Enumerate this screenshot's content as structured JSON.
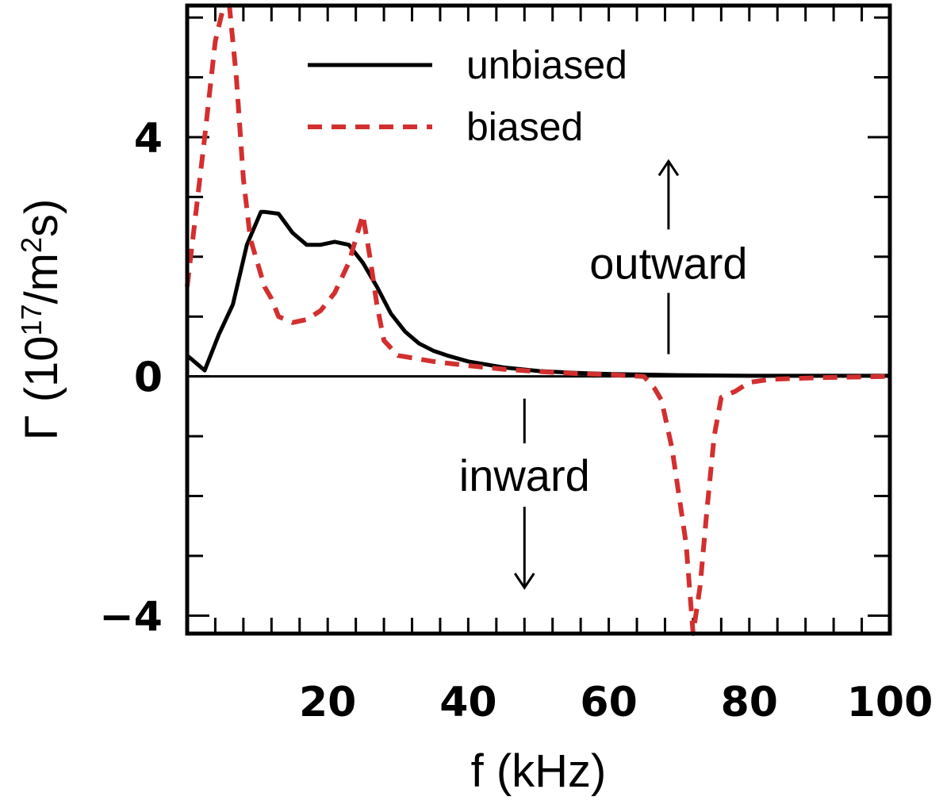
{
  "chart_data": {
    "type": "line",
    "xlabel": "f (kHz)",
    "ylabel_parts": [
      "Γ (10",
      "17",
      "/m",
      "2",
      "s)"
    ],
    "xlim": [
      0,
      100
    ],
    "ylim": [
      -4.3,
      6.2
    ],
    "x_ticks": [
      20,
      40,
      60,
      80,
      100
    ],
    "x_tick_labels": [
      "20",
      "40",
      "60",
      "80",
      "100"
    ],
    "y_ticks": [
      -4,
      0,
      4
    ],
    "y_tick_labels": [
      "−4",
      "0",
      "4"
    ],
    "x_minor_step": 4,
    "y_minor_step": 1,
    "zero_line": true,
    "legend_placement": "top-center",
    "series": [
      {
        "name": "unbiased",
        "style": "solid",
        "color": "#000000",
        "x": [
          0,
          2.5,
          4.5,
          6.5,
          8.5,
          10.5,
          11,
          13,
          15,
          17,
          19,
          21,
          23,
          25,
          27,
          29,
          31,
          33,
          35,
          37,
          40,
          45,
          50,
          55,
          60,
          65,
          70,
          75,
          80,
          90,
          100
        ],
        "y": [
          0.35,
          0.1,
          0.7,
          1.2,
          2.2,
          2.75,
          2.75,
          2.72,
          2.4,
          2.2,
          2.2,
          2.25,
          2.2,
          1.9,
          1.5,
          1.05,
          0.75,
          0.55,
          0.43,
          0.35,
          0.25,
          0.15,
          0.09,
          0.06,
          0.04,
          0.03,
          0.02,
          0.015,
          0.01,
          0.01,
          0.01
        ]
      },
      {
        "name": "biased",
        "style": "dashed",
        "color": "#d32f2f",
        "x": [
          0,
          1,
          2.5,
          4,
          5,
          6,
          7,
          8,
          9,
          10,
          11,
          12,
          13,
          15,
          17,
          19,
          21,
          23,
          24,
          25,
          26,
          27,
          28,
          30,
          35,
          40,
          45,
          50,
          55,
          60,
          65,
          66.5,
          67.5,
          69,
          70,
          71,
          72,
          73,
          74,
          75,
          76,
          78,
          80,
          83,
          90,
          100
        ],
        "y": [
          1.5,
          2.5,
          4.0,
          5.6,
          6.1,
          6.2,
          5.0,
          3.3,
          2.3,
          1.9,
          1.5,
          1.3,
          1.0,
          0.9,
          0.95,
          1.1,
          1.4,
          1.9,
          2.3,
          2.7,
          2.0,
          1.2,
          0.6,
          0.35,
          0.25,
          0.18,
          0.12,
          0.08,
          0.05,
          0.03,
          0.0,
          -0.2,
          -0.4,
          -1.2,
          -2.0,
          -2.8,
          -4.3,
          -3.5,
          -2.2,
          -1.0,
          -0.35,
          -0.25,
          -0.1,
          -0.05,
          -0.02,
          0.0
        ]
      }
    ],
    "annotations": [
      {
        "text": "outward",
        "direction": "up",
        "at_x": 68.5,
        "at_y": 1.9
      },
      {
        "text": "inward",
        "direction": "down",
        "at_x": 48,
        "at_y": -1.65
      }
    ]
  }
}
